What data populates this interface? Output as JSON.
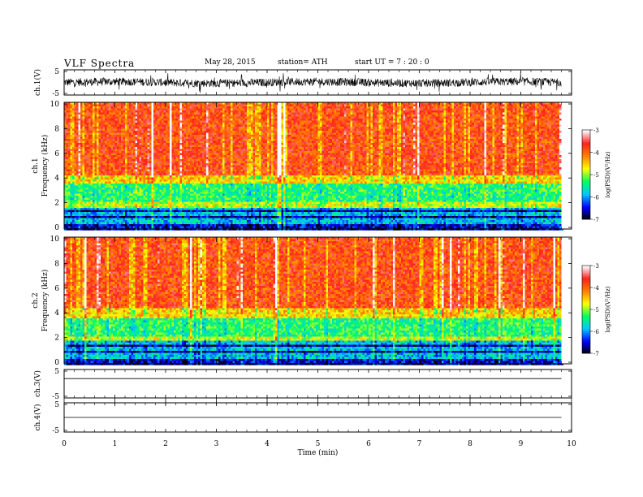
{
  "header": {
    "title": "VLF  Spectra",
    "date": "May 28, 2015",
    "station": "station= ATH",
    "start": "start  UT  =   7  : 20 : 0"
  },
  "chart_data": [
    {
      "type": "line",
      "panel": "ch1-waveform",
      "ylabel": "ch.1(V)",
      "yticks": [
        "5",
        "-5"
      ],
      "ylim": [
        -5,
        5
      ],
      "note": "dense broadband waveform, amplitude roughly -3..3 V with spikes",
      "x_range": [
        0,
        9.8
      ]
    },
    {
      "type": "heatmap",
      "panel": "ch1-spectrogram",
      "ylabel": "ch.1\nFrequency  (kHz)",
      "ylabel_lines": [
        "ch.1",
        "Frequency  (kHz)"
      ],
      "yticks": [
        "0",
        "2",
        "4",
        "6",
        "8",
        "10"
      ],
      "ylim": [
        0,
        10
      ],
      "xlim": [
        0,
        9.8
      ],
      "bands": [
        {
          "from": 0,
          "to": 0.4,
          "level": "-6.5"
        },
        {
          "from": 0.4,
          "to": 1.8,
          "level": "-5.8"
        },
        {
          "from": 1.8,
          "to": 2.2,
          "level": "-4.8"
        },
        {
          "from": 2.2,
          "to": 3.6,
          "level": "-5.3"
        },
        {
          "from": 3.6,
          "to": 4.3,
          "level": "-4.5"
        },
        {
          "from": 4.3,
          "to": 10,
          "level": "-3.8"
        }
      ],
      "colorbar": {
        "label": "log(PSD)(V²/Hz)",
        "ticks": [
          "-3",
          "-4",
          "-5",
          "-6",
          "-7"
        ],
        "range": [
          -7,
          -3
        ]
      }
    },
    {
      "type": "heatmap",
      "panel": "ch2-spectrogram",
      "ylabel": "ch.2\nFrequency  (kHz)",
      "ylabel_lines": [
        "ch.2",
        "Frequency  (kHz)"
      ],
      "yticks": [
        "0",
        "2",
        "4",
        "6",
        "8",
        "10"
      ],
      "ylim": [
        0,
        10
      ],
      "xlim": [
        0,
        9.8
      ],
      "bands": [
        {
          "from": 0,
          "to": 0.4,
          "level": "-6.5"
        },
        {
          "from": 0.4,
          "to": 1.9,
          "level": "-5.8"
        },
        {
          "from": 1.9,
          "to": 2.3,
          "level": "-4.8"
        },
        {
          "from": 2.3,
          "to": 3.6,
          "level": "-5.3"
        },
        {
          "from": 3.6,
          "to": 4.4,
          "level": "-4.5"
        },
        {
          "from": 4.4,
          "to": 10,
          "level": "-3.8"
        }
      ],
      "colorbar": {
        "label": "log(PSD)(V²/Hz)",
        "ticks": [
          "-3",
          "-4",
          "-5",
          "-6",
          "-7"
        ],
        "range": [
          -7,
          -3
        ]
      }
    },
    {
      "type": "line",
      "panel": "ch3-waveform",
      "ylabel": "ch.3(V)",
      "yticks": [
        "5",
        "-5"
      ],
      "ylim": [
        -5,
        5
      ],
      "x": [
        0,
        9.8
      ],
      "y": [
        1.8,
        1.8
      ]
    },
    {
      "type": "line",
      "panel": "ch4-waveform",
      "ylabel": "ch.4(V)",
      "yticks": [
        "5",
        "-5"
      ],
      "ylim": [
        -5,
        5
      ],
      "x": [
        0,
        9.8
      ],
      "y": [
        0,
        0
      ]
    }
  ],
  "x_axis": {
    "label": "Time  (min)",
    "ticks": [
      "0",
      "1",
      "2",
      "3",
      "4",
      "5",
      "6",
      "7",
      "8",
      "9",
      "10"
    ],
    "xlim": [
      0,
      10
    ]
  },
  "colors": {
    "spectrum_stops": [
      "#000000",
      "#0000ff",
      "#00c8ff",
      "#00ff60",
      "#ffff00",
      "#ff8000",
      "#ff2020",
      "#ffffff"
    ]
  }
}
